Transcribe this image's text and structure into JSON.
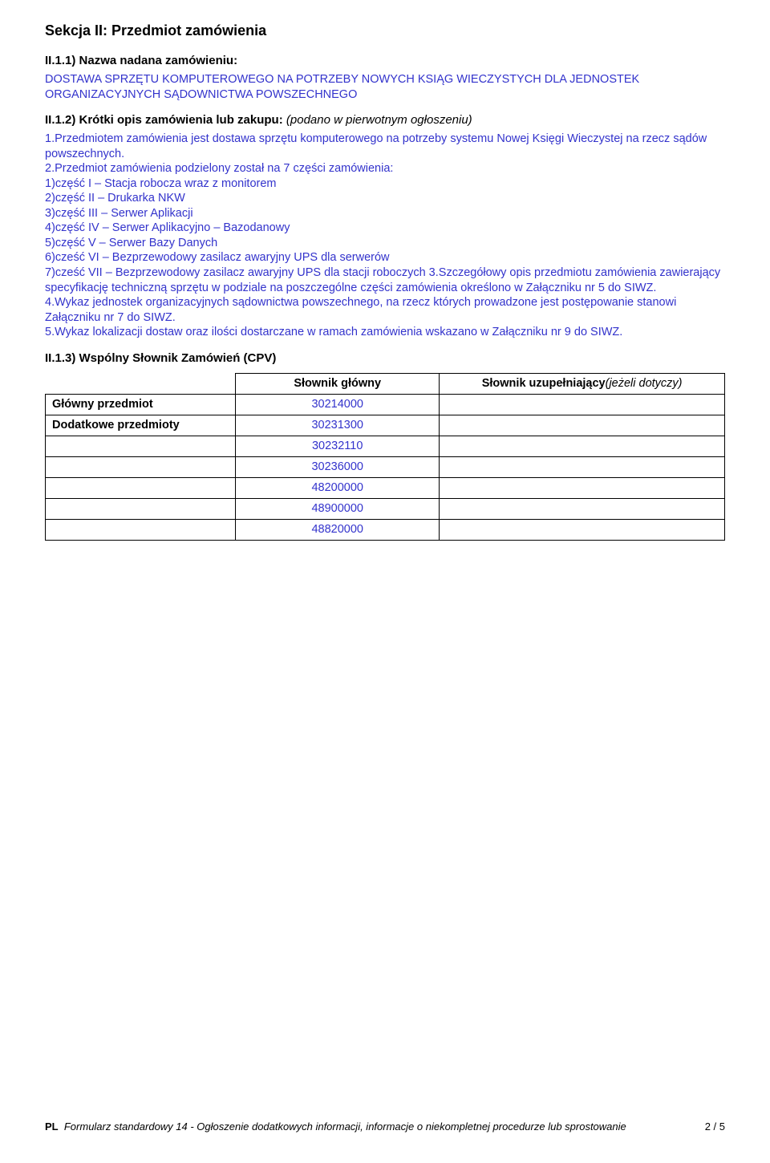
{
  "colors": {
    "text": "#000000",
    "link_blue": "#3333cc",
    "border": "#000000",
    "background": "#ffffff"
  },
  "section": {
    "title": "Sekcja II: Przedmiot zamówienia",
    "h_name": "II.1.1) Nazwa nadana zamówieniu:",
    "name_value": "DOSTAWA SPRZĘTU KOMPUTEROWEGO NA POTRZEBY NOWYCH KSIĄG WIECZYSTYCH DLA JEDNOSTEK ORGANIZACYJNYCH SĄDOWNICTWA POWSZECHNEGO",
    "h_short_prefix": "II.1.2) Krótki opis zamówienia lub zakupu:",
    "h_short_suffix": "(podano w pierwotnym ogłoszeniu)",
    "short_desc": "1.Przedmiotem zamówienia jest dostawa sprzętu komputerowego na potrzeby systemu Nowej Księgi Wieczystej na rzecz sądów powszechnych.\n2.Przedmiot zamówienia podzielony został na 7 części zamówienia:\n1)część I – Stacja robocza wraz z monitorem\n2)część II – Drukarka NKW\n3)część III – Serwer Aplikacji\n4)część IV – Serwer Aplikacyjno – Bazodanowy\n5)część V – Serwer Bazy Danych\n6)cześć VI – Bezprzewodowy zasilacz awaryjny UPS dla serwerów\n7)cześć VII – Bezprzewodowy zasilacz awaryjny UPS dla stacji roboczych 3.Szczegółowy opis przedmiotu zamówienia zawierający specyfikację techniczną sprzętu w podziale na poszczególne części zamówienia określono w Załączniku nr 5 do SIWZ.\n4.Wykaz jednostek organizacyjnych sądownictwa powszechnego, na rzecz których prowadzone jest postępowanie stanowi Załączniku nr 7 do SIWZ.\n5.Wykaz lokalizacji dostaw oraz ilości dostarczane w ramach zamówienia wskazano w Załączniku nr 9 do SIWZ.",
    "h_cpv": "II.1.3) Wspólny Słownik Zamówień (CPV)"
  },
  "cpv_table": {
    "col_main": "Słownik główny",
    "col_supp_prefix": "Słownik uzupełniający",
    "col_supp_suffix": "(jeżeli dotyczy)",
    "row_main_label": "Główny przedmiot",
    "row_add_label": "Dodatkowe przedmioty",
    "codes": {
      "main": "30214000",
      "add": [
        "30231300",
        "30232110",
        "30236000",
        "48200000",
        "48900000",
        "48820000"
      ]
    }
  },
  "footer": {
    "pl": "PL",
    "text": "Formularz standardowy 14 - Ogłoszenie dodatkowych informacji, informacje o niekompletnej procedurze lub sprostowanie",
    "page": "2 / 5"
  }
}
